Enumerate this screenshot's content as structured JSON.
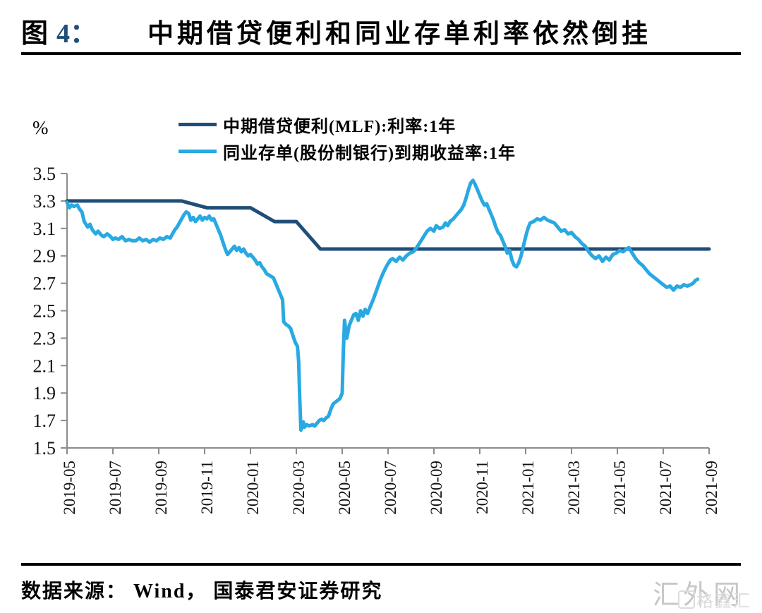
{
  "header": {
    "figure_label": "图",
    "figure_number": "4：",
    "figure_name": "中期借贷便利和同业存单利率依然倒挂"
  },
  "footer": {
    "source": "数据来源： Wind， 国泰君安证券研究"
  },
  "watermark": {
    "primary": "汇外网",
    "secondary": "格鑫汇"
  },
  "colors": {
    "figure_number_accent": "#1f4e79",
    "axis_gray": "#8c8c8c",
    "watermark_gray": "#c7c7c7",
    "watermark_gray_light": "#dcdcdc",
    "text_black": "#000000"
  },
  "chart_data": {
    "type": "line",
    "title": "中期借贷便利和同业存单利率依然倒挂",
    "xlabel": "",
    "ylabel": "%",
    "ylim": [
      1.5,
      3.5
    ],
    "ytick_step": 0.2,
    "grid": false,
    "legend_position": "top",
    "axis_color": "#8c8c8c",
    "tick_label_color": "#111111",
    "yticks": [
      "3.5",
      "3.3",
      "3.1",
      "2.9",
      "2.7",
      "2.5",
      "2.3",
      "2.1",
      "1.9",
      "1.7",
      "1.5"
    ],
    "xticks": [
      "2019-05",
      "2019-07",
      "2019-09",
      "2019-11",
      "2020-01",
      "2020-03",
      "2020-05",
      "2020-07",
      "2020-09",
      "2020-11",
      "2021-01",
      "2021-03",
      "2021-05",
      "2021-07",
      "2021-09"
    ],
    "x_unit": "months since 2019-05",
    "series": [
      {
        "id": "mlf",
        "name": "中期借贷便利(MLF):利率:1年",
        "color": "#1f4e79",
        "points": [
          [
            0,
            3.3
          ],
          [
            5,
            3.3
          ],
          [
            6.1,
            3.25
          ],
          [
            8,
            3.25
          ],
          [
            9.05,
            3.15
          ],
          [
            10,
            3.15
          ],
          [
            11.05,
            2.95
          ],
          [
            28,
            2.95
          ]
        ]
      },
      {
        "id": "ncd",
        "name": "同业存单(股份制银行)到期收益率:1年",
        "color": "#29a9e2",
        "points": [
          [
            0,
            3.29
          ],
          [
            0.1,
            3.25
          ],
          [
            0.2,
            3.27
          ],
          [
            0.3,
            3.26
          ],
          [
            0.45,
            3.27
          ],
          [
            0.55,
            3.24
          ],
          [
            0.65,
            3.22
          ],
          [
            0.75,
            3.15
          ],
          [
            0.9,
            3.11
          ],
          [
            1,
            3.13
          ],
          [
            1.1,
            3.09
          ],
          [
            1.25,
            3.06
          ],
          [
            1.35,
            3.08
          ],
          [
            1.5,
            3.05
          ],
          [
            1.6,
            3.04
          ],
          [
            1.75,
            3.06
          ],
          [
            1.9,
            3.04
          ],
          [
            2,
            3.02
          ],
          [
            2.1,
            3.03
          ],
          [
            2.25,
            3.02
          ],
          [
            2.4,
            3.04
          ],
          [
            2.55,
            3.01
          ],
          [
            2.7,
            3.02
          ],
          [
            2.85,
            3.01
          ],
          [
            3,
            3.01
          ],
          [
            3.15,
            3.03
          ],
          [
            3.3,
            3.01
          ],
          [
            3.45,
            3.02
          ],
          [
            3.6,
            3
          ],
          [
            3.75,
            3.02
          ],
          [
            3.9,
            3.01
          ],
          [
            4.05,
            3.03
          ],
          [
            4.2,
            3.02
          ],
          [
            4.35,
            3.04
          ],
          [
            4.5,
            3.03
          ],
          [
            4.6,
            3.06
          ],
          [
            4.7,
            3.09
          ],
          [
            4.8,
            3.11
          ],
          [
            4.9,
            3.14
          ],
          [
            5,
            3.17
          ],
          [
            5.1,
            3.2
          ],
          [
            5.2,
            3.22
          ],
          [
            5.3,
            3.21
          ],
          [
            5.4,
            3.16
          ],
          [
            5.5,
            3.18
          ],
          [
            5.6,
            3.15
          ],
          [
            5.7,
            3.17
          ],
          [
            5.8,
            3.19
          ],
          [
            5.9,
            3.16
          ],
          [
            6,
            3.18
          ],
          [
            6.1,
            3.17
          ],
          [
            6.2,
            3.19
          ],
          [
            6.3,
            3.16
          ],
          [
            6.4,
            3.17
          ],
          [
            6.5,
            3.13
          ],
          [
            6.6,
            3.09
          ],
          [
            6.7,
            3.05
          ],
          [
            6.8,
            3
          ],
          [
            6.9,
            2.95
          ],
          [
            7,
            2.91
          ],
          [
            7.1,
            2.93
          ],
          [
            7.2,
            2.95
          ],
          [
            7.3,
            2.97
          ],
          [
            7.4,
            2.94
          ],
          [
            7.5,
            2.96
          ],
          [
            7.6,
            2.93
          ],
          [
            7.7,
            2.95
          ],
          [
            7.8,
            2.92
          ],
          [
            7.9,
            2.9
          ],
          [
            8,
            2.91
          ],
          [
            8.1,
            2.89
          ],
          [
            8.2,
            2.87
          ],
          [
            8.3,
            2.84
          ],
          [
            8.4,
            2.85
          ],
          [
            8.5,
            2.82
          ],
          [
            8.6,
            2.8
          ],
          [
            8.7,
            2.77
          ],
          [
            8.8,
            2.76
          ],
          [
            8.9,
            2.75
          ],
          [
            9,
            2.74
          ],
          [
            9.1,
            2.7
          ],
          [
            9.2,
            2.66
          ],
          [
            9.3,
            2.62
          ],
          [
            9.4,
            2.58
          ],
          [
            9.45,
            2.42
          ],
          [
            9.55,
            2.4
          ],
          [
            9.65,
            2.39
          ],
          [
            9.75,
            2.37
          ],
          [
            9.85,
            2.32
          ],
          [
            9.95,
            2.27
          ],
          [
            10.05,
            2.24
          ],
          [
            10.1,
            2.13
          ],
          [
            10.15,
            1.85
          ],
          [
            10.2,
            1.63
          ],
          [
            10.3,
            1.69
          ],
          [
            10.35,
            1.65
          ],
          [
            10.45,
            1.67
          ],
          [
            10.55,
            1.66
          ],
          [
            10.7,
            1.67
          ],
          [
            10.8,
            1.66
          ],
          [
            10.9,
            1.68
          ],
          [
            11,
            1.7
          ],
          [
            11.1,
            1.71
          ],
          [
            11.2,
            1.7
          ],
          [
            11.3,
            1.72
          ],
          [
            11.4,
            1.73
          ],
          [
            11.5,
            1.78
          ],
          [
            11.6,
            1.82
          ],
          [
            11.75,
            1.84
          ],
          [
            11.9,
            1.86
          ],
          [
            12,
            1.9
          ],
          [
            12.05,
            2.2
          ],
          [
            12.1,
            2.43
          ],
          [
            12.2,
            2.3
          ],
          [
            12.3,
            2.39
          ],
          [
            12.4,
            2.43
          ],
          [
            12.5,
            2.47
          ],
          [
            12.6,
            2.48
          ],
          [
            12.7,
            2.43
          ],
          [
            12.8,
            2.5
          ],
          [
            12.9,
            2.46
          ],
          [
            13,
            2.51
          ],
          [
            13.1,
            2.48
          ],
          [
            13.2,
            2.52
          ],
          [
            13.35,
            2.58
          ],
          [
            13.5,
            2.65
          ],
          [
            13.65,
            2.72
          ],
          [
            13.8,
            2.78
          ],
          [
            13.95,
            2.83
          ],
          [
            14.1,
            2.87
          ],
          [
            14.2,
            2.88
          ],
          [
            14.35,
            2.86
          ],
          [
            14.5,
            2.89
          ],
          [
            14.65,
            2.87
          ],
          [
            14.8,
            2.9
          ],
          [
            14.95,
            2.92
          ],
          [
            15.1,
            2.93
          ],
          [
            15.25,
            2.96
          ],
          [
            15.4,
            3
          ],
          [
            15.55,
            3.04
          ],
          [
            15.7,
            3.08
          ],
          [
            15.85,
            3.1
          ],
          [
            16,
            3.08
          ],
          [
            16.1,
            3.12
          ],
          [
            16.25,
            3.1
          ],
          [
            16.4,
            3.11
          ],
          [
            16.5,
            3.14
          ],
          [
            16.6,
            3.12
          ],
          [
            16.7,
            3.15
          ],
          [
            16.85,
            3.17
          ],
          [
            17,
            3.2
          ],
          [
            17.1,
            3.22
          ],
          [
            17.2,
            3.24
          ],
          [
            17.3,
            3.27
          ],
          [
            17.4,
            3.32
          ],
          [
            17.5,
            3.38
          ],
          [
            17.6,
            3.43
          ],
          [
            17.7,
            3.45
          ],
          [
            17.8,
            3.42
          ],
          [
            17.9,
            3.38
          ],
          [
            18,
            3.34
          ],
          [
            18.1,
            3.3
          ],
          [
            18.2,
            3.27
          ],
          [
            18.3,
            3.28
          ],
          [
            18.4,
            3.24
          ],
          [
            18.5,
            3.2
          ],
          [
            18.6,
            3.16
          ],
          [
            18.7,
            3.11
          ],
          [
            18.8,
            3.07
          ],
          [
            18.9,
            3.05
          ],
          [
            19,
            3.01
          ],
          [
            19.1,
            2.97
          ],
          [
            19.2,
            2.92
          ],
          [
            19.3,
            2.94
          ],
          [
            19.4,
            2.87
          ],
          [
            19.5,
            2.83
          ],
          [
            19.6,
            2.82
          ],
          [
            19.7,
            2.85
          ],
          [
            19.8,
            2.9
          ],
          [
            19.9,
            2.97
          ],
          [
            20,
            3.04
          ],
          [
            20.1,
            3.1
          ],
          [
            20.2,
            3.14
          ],
          [
            20.35,
            3.15
          ],
          [
            20.5,
            3.17
          ],
          [
            20.65,
            3.16
          ],
          [
            20.8,
            3.18
          ],
          [
            20.95,
            3.16
          ],
          [
            21.1,
            3.15
          ],
          [
            21.25,
            3.14
          ],
          [
            21.4,
            3.11
          ],
          [
            21.55,
            3.08
          ],
          [
            21.7,
            3.09
          ],
          [
            21.85,
            3.06
          ],
          [
            22,
            3.07
          ],
          [
            22.15,
            3.04
          ],
          [
            22.3,
            3.02
          ],
          [
            22.45,
            2.99
          ],
          [
            22.6,
            2.97
          ],
          [
            22.75,
            2.93
          ],
          [
            22.9,
            2.9
          ],
          [
            23.05,
            2.88
          ],
          [
            23.2,
            2.9
          ],
          [
            23.35,
            2.86
          ],
          [
            23.5,
            2.89
          ],
          [
            23.65,
            2.87
          ],
          [
            23.8,
            2.91
          ],
          [
            23.95,
            2.92
          ],
          [
            24.1,
            2.94
          ],
          [
            24.25,
            2.93
          ],
          [
            24.4,
            2.95
          ],
          [
            24.5,
            2.96
          ],
          [
            24.65,
            2.92
          ],
          [
            24.8,
            2.88
          ],
          [
            24.95,
            2.85
          ],
          [
            25.1,
            2.83
          ],
          [
            25.25,
            2.8
          ],
          [
            25.4,
            2.77
          ],
          [
            25.55,
            2.75
          ],
          [
            25.7,
            2.73
          ],
          [
            25.85,
            2.71
          ],
          [
            26,
            2.69
          ],
          [
            26.15,
            2.67
          ],
          [
            26.3,
            2.68
          ],
          [
            26.45,
            2.65
          ],
          [
            26.6,
            2.68
          ],
          [
            26.75,
            2.67
          ],
          [
            26.9,
            2.69
          ],
          [
            27.05,
            2.68
          ],
          [
            27.2,
            2.69
          ],
          [
            27.3,
            2.7
          ],
          [
            27.4,
            2.72
          ],
          [
            27.5,
            2.73
          ]
        ]
      }
    ]
  }
}
